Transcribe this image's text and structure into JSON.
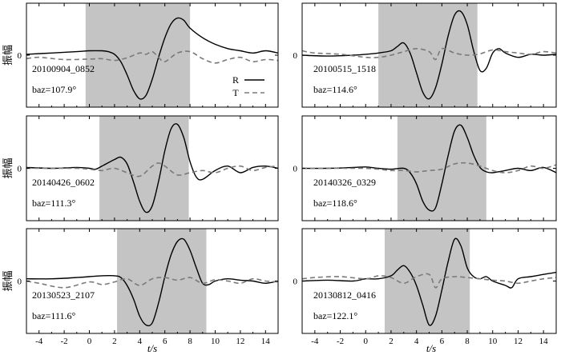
{
  "colors": {
    "shade": "#c4c4c4",
    "R": "#000000",
    "T": "#7a7a7a"
  },
  "chart_data": {
    "type": "line",
    "x_axis": {
      "label": "t/s",
      "range": [
        -5,
        15
      ],
      "ticks": [
        -4,
        -2,
        0,
        2,
        4,
        6,
        8,
        10,
        12,
        14
      ]
    },
    "y_axis": {
      "label": "振幅",
      "ticks": [
        0
      ]
    },
    "legend": {
      "entries": [
        "R",
        "T"
      ],
      "position": "inside-right of first panel"
    },
    "panels": [
      {
        "event": "20100904_0852",
        "baz": "baz=107.9°",
        "shade": [
          -0.3,
          8.0
        ],
        "series": [
          {
            "name": "R",
            "style": "solid",
            "x": [
              -5,
              -3,
              -1,
              0,
              1,
              1.5,
              2,
              2.5,
              3,
              3.5,
              4,
              4.5,
              5,
              5.5,
              6,
              6.5,
              7,
              7.5,
              8,
              9,
              10,
              11,
              12,
              13,
              14,
              15
            ],
            "y": [
              0.02,
              0.05,
              0.08,
              0.1,
              0.1,
              0.08,
              0.02,
              -0.15,
              -0.45,
              -0.8,
              -1.0,
              -0.92,
              -0.55,
              -0.05,
              0.4,
              0.72,
              0.85,
              0.8,
              0.62,
              0.4,
              0.25,
              0.15,
              0.1,
              0.05,
              0.1,
              0.05
            ]
          },
          {
            "name": "T",
            "style": "dashed",
            "x": [
              -5,
              -4,
              -2,
              0,
              1,
              2,
              3,
              4,
              4.5,
              5,
              5.5,
              6,
              7,
              8,
              9,
              10,
              11,
              12,
              13,
              14,
              15
            ],
            "y": [
              -0.08,
              -0.05,
              -0.1,
              -0.09,
              -0.08,
              -0.12,
              -0.06,
              0.05,
              0.02,
              0.08,
              -0.05,
              -0.15,
              0.05,
              0.08,
              -0.08,
              -0.18,
              -0.1,
              -0.05,
              -0.15,
              -0.1,
              -0.12
            ]
          }
        ]
      },
      {
        "event": "20100515_1518",
        "baz": "baz=114.6°",
        "shade": [
          1.0,
          8.8
        ],
        "series": [
          {
            "name": "R",
            "style": "solid",
            "x": [
              -5,
              -3,
              -1,
              0,
              1,
              2,
              2.5,
              3,
              3.5,
              4,
              4.5,
              5,
              5.5,
              6,
              6.5,
              7,
              7.5,
              8,
              8.5,
              9,
              9.5,
              10,
              10.5,
              11,
              12,
              13,
              14,
              15
            ],
            "y": [
              0,
              -0.02,
              0.0,
              0.02,
              0.05,
              0.1,
              0.2,
              0.28,
              0.05,
              -0.4,
              -0.85,
              -1.0,
              -0.75,
              -0.2,
              0.45,
              0.92,
              1.0,
              0.7,
              0.1,
              -0.35,
              -0.3,
              0.05,
              0.15,
              0.05,
              -0.05,
              0.02,
              0.0,
              0.02
            ]
          },
          {
            "name": "T",
            "style": "dashed",
            "x": [
              -5,
              -4,
              -2,
              0,
              1,
              2,
              3,
              4,
              5,
              5.5,
              6,
              7,
              8,
              9,
              10,
              11,
              12,
              13,
              14,
              15
            ],
            "y": [
              0.1,
              0.05,
              0.02,
              -0.05,
              -0.05,
              0.0,
              0.08,
              0.15,
              0.08,
              -0.1,
              0.15,
              0.05,
              0.0,
              0.03,
              0.12,
              0.08,
              0.05,
              0.02,
              0.08,
              0.05
            ]
          }
        ]
      },
      {
        "event": "20140426_0602",
        "baz": "baz=111.3°",
        "shade": [
          0.8,
          7.9
        ],
        "series": [
          {
            "name": "R",
            "style": "solid",
            "x": [
              -5,
              -3,
              -1,
              0,
              0.5,
              1,
              2,
              2.5,
              3,
              3.5,
              4,
              4.5,
              5,
              5.5,
              6,
              6.5,
              7,
              7.5,
              8,
              8.5,
              9,
              10,
              11,
              12,
              13,
              14,
              15
            ],
            "y": [
              0.02,
              0.0,
              0.02,
              0.0,
              -0.02,
              0.05,
              0.2,
              0.25,
              0.1,
              -0.3,
              -0.75,
              -1.0,
              -0.85,
              -0.3,
              0.4,
              0.9,
              1.0,
              0.7,
              0.15,
              -0.2,
              -0.25,
              -0.05,
              0.05,
              -0.1,
              0.02,
              0.05,
              0.0
            ]
          },
          {
            "name": "T",
            "style": "dashed",
            "x": [
              -5,
              -3,
              -1,
              0,
              1,
              2,
              3,
              4,
              5,
              5.5,
              6,
              7,
              8,
              9,
              10,
              11,
              12,
              13,
              14,
              15
            ],
            "y": [
              0.0,
              0.0,
              0.0,
              -0.02,
              -0.05,
              0.0,
              -0.1,
              -0.18,
              0.05,
              0.12,
              0.05,
              -0.15,
              -0.1,
              -0.05,
              -0.1,
              0.0,
              0.05,
              -0.05,
              0.02,
              0.05
            ]
          }
        ]
      },
      {
        "event": "20140326_0329",
        "baz": "baz=118.6°",
        "shade": [
          2.5,
          9.5
        ],
        "series": [
          {
            "name": "R",
            "style": "solid",
            "x": [
              -5,
              -3,
              -1,
              0,
              1,
              2,
              3,
              3.5,
              4,
              4.5,
              5,
              5.5,
              6,
              6.5,
              7,
              7.5,
              8,
              8.5,
              9,
              9.5,
              10,
              11,
              12,
              13,
              14,
              15
            ],
            "y": [
              0.0,
              0.0,
              0.02,
              0.03,
              0.0,
              -0.02,
              0.0,
              -0.1,
              -0.35,
              -0.75,
              -0.95,
              -0.9,
              -0.35,
              0.3,
              0.85,
              0.98,
              0.7,
              0.3,
              0.02,
              -0.08,
              -0.1,
              -0.05,
              0.0,
              -0.05,
              0.02,
              -0.1
            ]
          },
          {
            "name": "T",
            "style": "dashed",
            "x": [
              -5,
              -3,
              -1,
              0,
              1,
              2,
              3,
              4,
              5,
              6,
              7,
              8,
              9,
              10,
              11,
              12,
              13,
              14,
              15
            ],
            "y": [
              0.0,
              0.0,
              0.0,
              0.0,
              -0.02,
              -0.05,
              -0.05,
              -0.08,
              -0.05,
              -0.02,
              0.1,
              0.12,
              0.05,
              -0.05,
              -0.1,
              -0.05,
              0.05,
              0.0,
              0.08
            ]
          }
        ]
      },
      {
        "event": "20130523_2107",
        "baz": "baz=111.6°",
        "shade": [
          2.2,
          9.3
        ],
        "series": [
          {
            "name": "R",
            "style": "solid",
            "x": [
              -5,
              -3,
              -1,
              0,
              1,
              2,
              2.5,
              3,
              3.5,
              4,
              4.5,
              5,
              5.5,
              6,
              6.5,
              7,
              7.5,
              8,
              8.5,
              9,
              9.5,
              10,
              11,
              12,
              13,
              14,
              15
            ],
            "y": [
              0.05,
              0.05,
              0.08,
              0.1,
              0.12,
              0.12,
              0.08,
              -0.1,
              -0.4,
              -0.8,
              -1.0,
              -0.95,
              -0.5,
              0.1,
              0.6,
              0.9,
              0.95,
              0.7,
              0.3,
              -0.05,
              -0.08,
              0.0,
              0.05,
              0.02,
              0.0,
              -0.05,
              0.0
            ]
          },
          {
            "name": "T",
            "style": "dashed",
            "x": [
              -5,
              -4,
              -2,
              0,
              1,
              2,
              3,
              4,
              5,
              6,
              7,
              8,
              9,
              10,
              11,
              12,
              13,
              14,
              15
            ],
            "y": [
              0.0,
              -0.05,
              -0.15,
              -0.02,
              -0.08,
              -0.02,
              0.05,
              -0.1,
              0.05,
              0.08,
              0.02,
              0.08,
              -0.05,
              0.03,
              0.0,
              -0.05,
              0.05,
              0.0,
              -0.02
            ]
          }
        ]
      },
      {
        "event": "20130812_0416",
        "baz": "baz=122.1°",
        "shade": [
          1.5,
          8.2
        ],
        "series": [
          {
            "name": "R",
            "style": "solid",
            "x": [
              -5,
              -3,
              -1,
              0,
              1,
              2,
              2.5,
              3,
              3.5,
              4,
              4.5,
              5,
              5.5,
              6,
              6.5,
              7,
              7.5,
              8,
              8.5,
              9,
              9.5,
              10,
              11,
              11.5,
              12,
              13,
              14,
              15
            ],
            "y": [
              0.0,
              0.02,
              0.0,
              0.05,
              0.05,
              0.12,
              0.25,
              0.35,
              0.2,
              -0.1,
              -0.55,
              -1.0,
              -0.8,
              -0.2,
              0.45,
              0.95,
              0.8,
              0.3,
              0.1,
              0.05,
              0.1,
              0.0,
              -0.1,
              -0.15,
              0.05,
              0.1,
              0.15,
              0.2
            ]
          },
          {
            "name": "T",
            "style": "dashed",
            "x": [
              -5,
              -4,
              -2,
              0,
              1,
              2,
              3,
              4,
              5,
              5.5,
              6,
              7,
              8,
              9,
              10,
              11,
              12,
              13,
              14,
              15
            ],
            "y": [
              0.05,
              0.08,
              0.1,
              0.05,
              0.12,
              0.08,
              -0.05,
              0.1,
              0.15,
              -0.15,
              0.05,
              0.1,
              0.08,
              0.05,
              0.02,
              0.0,
              -0.05,
              0.0,
              0.05,
              0.08
            ]
          }
        ]
      }
    ]
  }
}
